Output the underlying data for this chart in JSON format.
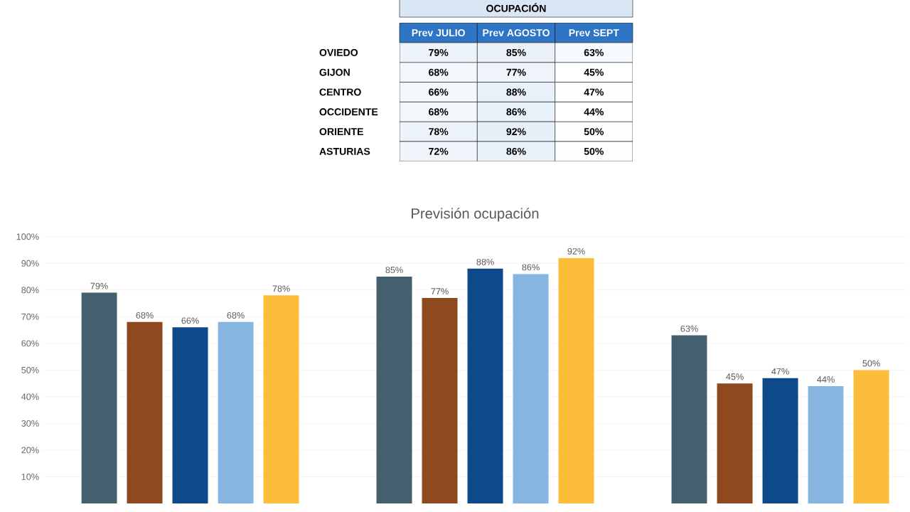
{
  "chart_data": [
    {
      "type": "heatmap",
      "title": "OCUPACIÓN",
      "categories": [
        "Prev JULIO",
        "Prev AGOSTO",
        "Prev SEPT"
      ],
      "y_categories": [
        "OVIEDO",
        "GIJON",
        "CENTRO",
        "OCCIDENTE",
        "ORIENTE",
        "ASTURIAS"
      ],
      "cells": [
        [
          79,
          85,
          63
        ],
        [
          68,
          77,
          45
        ],
        [
          66,
          88,
          47
        ],
        [
          68,
          86,
          44
        ],
        [
          78,
          92,
          50
        ],
        [
          72,
          86,
          50
        ]
      ],
      "cell_labels": [
        [
          "79%",
          "85%",
          "63%"
        ],
        [
          "68%",
          "77%",
          "45%"
        ],
        [
          "66%",
          "88%",
          "47%"
        ],
        [
          "68%",
          "86%",
          "44%"
        ],
        [
          "78%",
          "92%",
          "50%"
        ],
        [
          "72%",
          "86%",
          "50%"
        ]
      ]
    },
    {
      "type": "bar",
      "title": "Previsión ocupación",
      "categories": [
        null,
        null,
        null
      ],
      "series": [
        {
          "color": "#44606f",
          "values": [
            79,
            85,
            63
          ],
          "value_labels": [
            "79%",
            "85%",
            "63%"
          ]
        },
        {
          "color": "#8e4a1e",
          "values": [
            68,
            77,
            45
          ],
          "value_labels": [
            "68%",
            "77%",
            "45%"
          ]
        },
        {
          "color": "#0e4a8a",
          "values": [
            66,
            88,
            47
          ],
          "value_labels": [
            "66%",
            "88%",
            "47%"
          ]
        },
        {
          "color": "#86b5e0",
          "values": [
            68,
            86,
            44
          ],
          "value_labels": [
            "68%",
            "86%",
            "44%"
          ]
        },
        {
          "color": "#fbbd3a",
          "values": [
            78,
            92,
            50
          ],
          "value_labels": [
            "78%",
            "92%",
            "50%"
          ]
        }
      ],
      "ylim": [
        0,
        100
      ],
      "yticks": [
        {
          "value": 10,
          "label": "10%"
        },
        {
          "value": 20,
          "label": "20%"
        },
        {
          "value": 30,
          "label": "30%"
        },
        {
          "value": 40,
          "label": "40%"
        },
        {
          "value": 50,
          "label": "50%"
        },
        {
          "value": 60,
          "label": "60%"
        },
        {
          "value": 70,
          "label": "70%"
        },
        {
          "value": 80,
          "label": "80%"
        },
        {
          "value": 90,
          "label": "90%"
        },
        {
          "value": 100,
          "label": "100%"
        }
      ],
      "grid": "y"
    }
  ]
}
